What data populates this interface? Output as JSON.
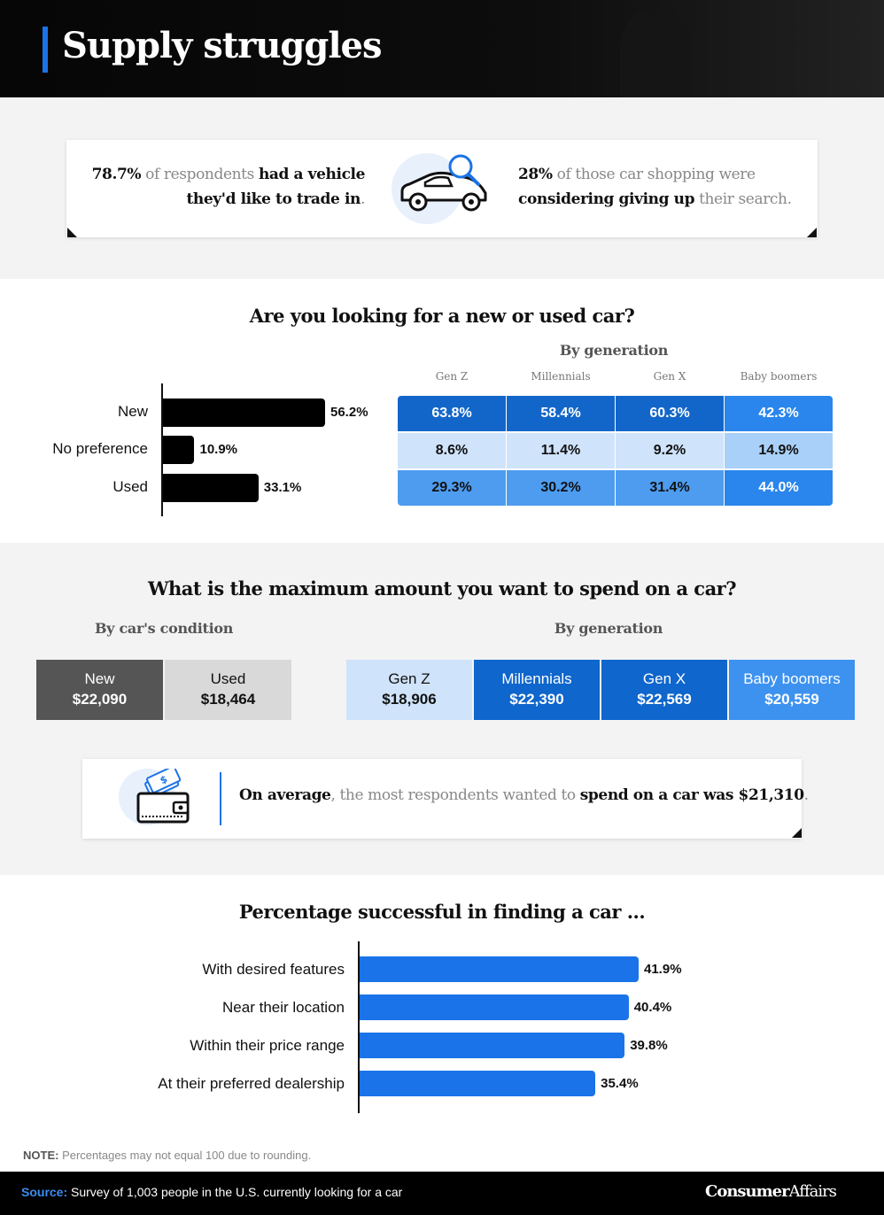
{
  "header": {
    "title": "Supply struggles"
  },
  "stats": {
    "left": {
      "pct": "78.7%",
      "mid": " of respondents ",
      "bold": "had a vehicle they'd like to trade in",
      "end": "."
    },
    "right": {
      "pct": "28%",
      "mid": " of those car shopping were ",
      "bold": "considering giving up",
      "end": " their search."
    }
  },
  "q1": {
    "title": "Are you looking for a new or used car?",
    "by_generation_label": "By generation"
  },
  "q2": {
    "title": "What is the maximum amount you want to spend on a car?",
    "condition_label": "By car's condition",
    "generation_label": "By generation",
    "condition": [
      {
        "label": "New",
        "value": "$22,090",
        "bg": "#555555",
        "fg": "#ffffff"
      },
      {
        "label": "Used",
        "value": "$18,464",
        "bg": "#d9d9d9",
        "fg": "#111111"
      }
    ],
    "generation": [
      {
        "label": "Gen Z",
        "value": "$18,906",
        "bg": "#cfe3fb",
        "fg": "#111111"
      },
      {
        "label": "Millennials",
        "value": "$22,390",
        "bg": "#0f66cc",
        "fg": "#ffffff"
      },
      {
        "label": "Gen X",
        "value": "$22,569",
        "bg": "#0f66cc",
        "fg": "#ffffff"
      },
      {
        "label": "Baby boomers",
        "value": "$20,559",
        "bg": "#3d92f0",
        "fg": "#ffffff"
      }
    ],
    "average": {
      "bold1": "On average",
      "mid": ", the most respondents wanted to ",
      "bold2": "spend on a car was $21,310",
      "end": "."
    }
  },
  "q3": {
    "title": "Percentage successful in finding a car ..."
  },
  "note": {
    "label": "NOTE:",
    "text": " Percentages may not equal 100 due to rounding."
  },
  "footer": {
    "source_label": "Source:",
    "source_text": " Survey of 1,003 people in the U.S. currently looking for a car",
    "logo_bold": "Consumer",
    "logo_rest": "Affairs"
  },
  "colors": {
    "accent": "#1a73e8",
    "heat_dark": "#1366c9",
    "heat_mid": "#4d9cf0",
    "heat_light": "#a9d0f8",
    "heat_pale": "#cfe3fb"
  },
  "icons": [
    "car-search-icon",
    "wallet-money-icon"
  ],
  "chart_data": [
    {
      "type": "bar",
      "orientation": "horizontal",
      "title": "Are you looking for a new or used car?",
      "categories": [
        "New",
        "No preference",
        "Used"
      ],
      "values": [
        56.2,
        10.9,
        33.1
      ],
      "labels": [
        "56.2%",
        "10.9%",
        "33.1%"
      ],
      "xlim": [
        0,
        100
      ]
    },
    {
      "type": "heatmap",
      "title": "By generation",
      "columns": [
        "Gen Z",
        "Millennials",
        "Gen X",
        "Baby boomers"
      ],
      "rows": [
        "New",
        "No preference",
        "Used"
      ],
      "values": [
        [
          63.8,
          58.4,
          60.3,
          42.3
        ],
        [
          8.6,
          11.4,
          9.2,
          14.9
        ],
        [
          29.3,
          30.2,
          31.4,
          44.0
        ]
      ],
      "labels": [
        [
          "63.8%",
          "58.4%",
          "60.3%",
          "42.3%"
        ],
        [
          "8.6%",
          "11.4%",
          "9.2%",
          "14.9%"
        ],
        [
          "29.3%",
          "30.2%",
          "31.4%",
          "44.0%"
        ]
      ]
    },
    {
      "type": "bar",
      "orientation": "horizontal",
      "title": "Percentage successful in finding a car ...",
      "categories": [
        "With desired features",
        "Near their location",
        "Within their price range",
        "At their preferred dealership"
      ],
      "values": [
        41.9,
        40.4,
        39.8,
        35.4
      ],
      "labels": [
        "41.9%",
        "40.4%",
        "39.8%",
        "35.4%"
      ],
      "xlim": [
        0,
        50
      ]
    }
  ]
}
